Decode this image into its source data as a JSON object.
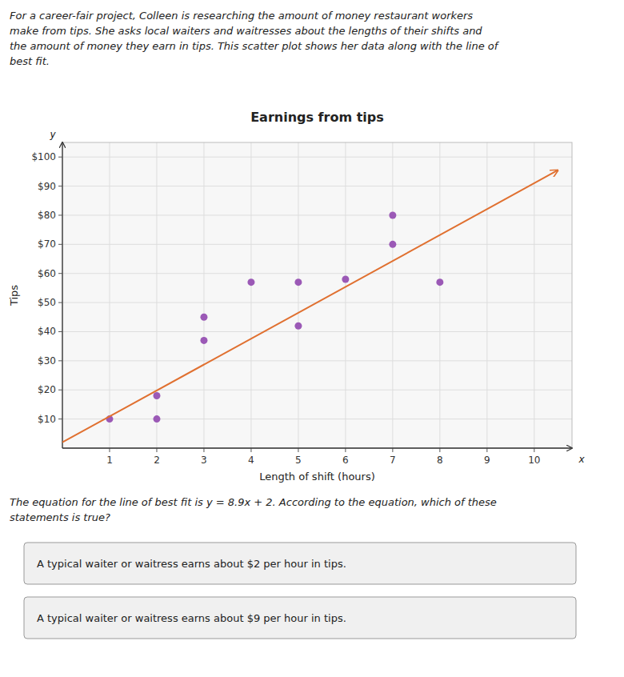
{
  "chart_data": {
    "type": "scatter",
    "title": "Earnings from tips",
    "subtitle": "For a career-fair project, Colleen is researching the amount of money restaurant workers\nmake from tips. She asks local waiters and waitresses about the lengths of their shifts and\nthe amount of money they earn in tips. This scatter plot shows her data along with the line of\nbest fit.",
    "xlabel": "Length of shift (hours)",
    "ylabel": "Tips",
    "xlim": [
      0,
      10.8
    ],
    "ylim": [
      0,
      105
    ],
    "xticks": [
      1,
      2,
      3,
      4,
      5,
      6,
      7,
      8,
      9,
      10
    ],
    "yticks": [
      {
        "value": 10,
        "label": "$10"
      },
      {
        "value": 20,
        "label": "$20"
      },
      {
        "value": 30,
        "label": "$30"
      },
      {
        "value": 40,
        "label": "$40"
      },
      {
        "value": 50,
        "label": "$50"
      },
      {
        "value": 60,
        "label": "$60"
      },
      {
        "value": 70,
        "label": "$70"
      },
      {
        "value": 80,
        "label": "$80"
      },
      {
        "value": 90,
        "label": "$90"
      },
      {
        "value": 100,
        "label": "$100"
      }
    ],
    "grid": true,
    "series": [
      {
        "type": "scatter",
        "color": "#9b59b6",
        "x": [
          1,
          2,
          2,
          3,
          3,
          4,
          5,
          5,
          6,
          7,
          7,
          8
        ],
        "values": [
          10,
          18,
          10,
          37,
          45,
          57,
          42,
          57,
          58,
          70,
          80,
          57
        ]
      },
      {
        "type": "line",
        "color": "#e07030",
        "x": [
          0,
          10.4,
          10.5
        ],
        "values": [
          2,
          94.56,
          95.45
        ]
      }
    ],
    "annotations": [
      "The equation for the line of best fit is y = 8.9x + 2. According to the equation, which of these\nstatements is true?",
      "A typical waiter or waitress earns about $2 per hour in tips.",
      "A typical waiter or waitress earns about $9 per hour in tips.",
      "y",
      "x"
    ]
  }
}
